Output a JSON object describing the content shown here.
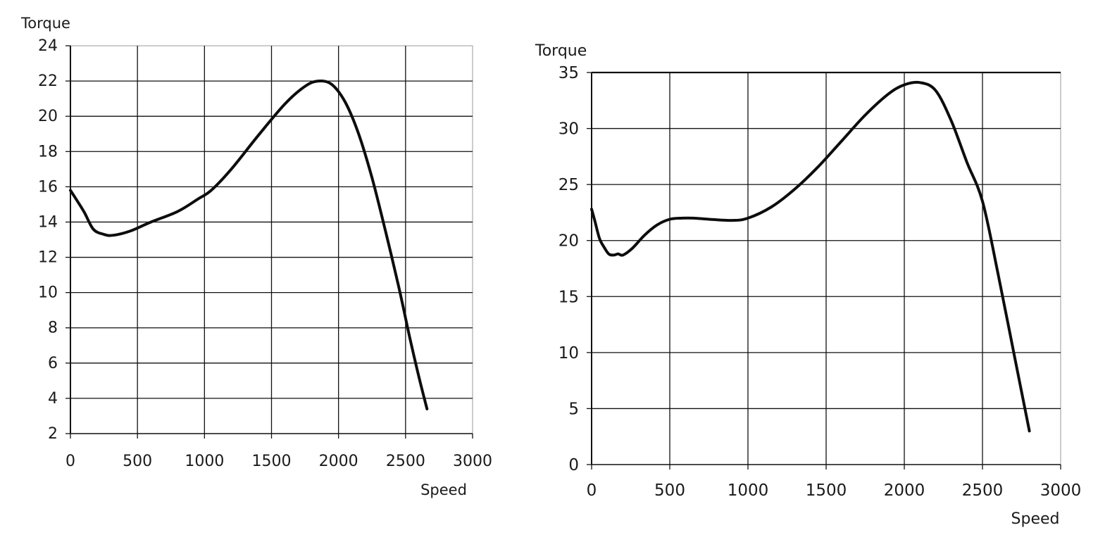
{
  "chart_data": [
    {
      "type": "line",
      "ylabel": "Torque",
      "xlabel": "Speed",
      "xlim": [
        0,
        3000
      ],
      "ylim": [
        2,
        24
      ],
      "x_ticks": [
        0,
        500,
        1000,
        1500,
        2000,
        2500,
        3000
      ],
      "y_ticks": [
        2,
        4,
        6,
        8,
        10,
        12,
        14,
        16,
        18,
        20,
        22,
        24
      ],
      "grid": true,
      "series": [
        {
          "x": [
            0,
            100,
            170,
            250,
            320,
            450,
            600,
            800,
            950,
            1050,
            1200,
            1400,
            1600,
            1750,
            1850,
            1950,
            2050,
            2150,
            2250,
            2350,
            2450,
            2530,
            2600,
            2660
          ],
          "y": [
            15.8,
            14.6,
            13.6,
            13.3,
            13.25,
            13.5,
            14.0,
            14.6,
            15.3,
            15.8,
            17.0,
            18.9,
            20.7,
            21.7,
            22.0,
            21.8,
            20.8,
            19.0,
            16.5,
            13.5,
            10.3,
            7.5,
            5.2,
            3.4
          ]
        }
      ]
    },
    {
      "type": "line",
      "ylabel": "Torque",
      "xlabel": "Speed",
      "xlim": [
        0,
        3000
      ],
      "ylim": [
        0,
        35
      ],
      "x_ticks": [
        0,
        500,
        1000,
        1500,
        2000,
        2500,
        3000
      ],
      "y_ticks": [
        0,
        5,
        10,
        15,
        20,
        25,
        30,
        35
      ],
      "grid": true,
      "series": [
        {
          "x": [
            0,
            20,
            50,
            80,
            110,
            140,
            170,
            200,
            260,
            340,
            420,
            500,
            580,
            650,
            750,
            900,
            1000,
            1150,
            1300,
            1450,
            1600,
            1750,
            1900,
            2000,
            2100,
            2200,
            2300,
            2400,
            2500,
            2600,
            2700,
            2800
          ],
          "y": [
            22.8,
            21.8,
            20.2,
            19.4,
            18.8,
            18.7,
            18.8,
            18.7,
            19.3,
            20.5,
            21.4,
            21.9,
            22.0,
            22.0,
            21.9,
            21.8,
            22.0,
            23.0,
            24.6,
            26.6,
            28.9,
            31.2,
            33.1,
            33.9,
            34.1,
            33.4,
            30.7,
            27.0,
            23.5,
            17.0,
            10.0,
            3.0
          ]
        }
      ]
    }
  ]
}
